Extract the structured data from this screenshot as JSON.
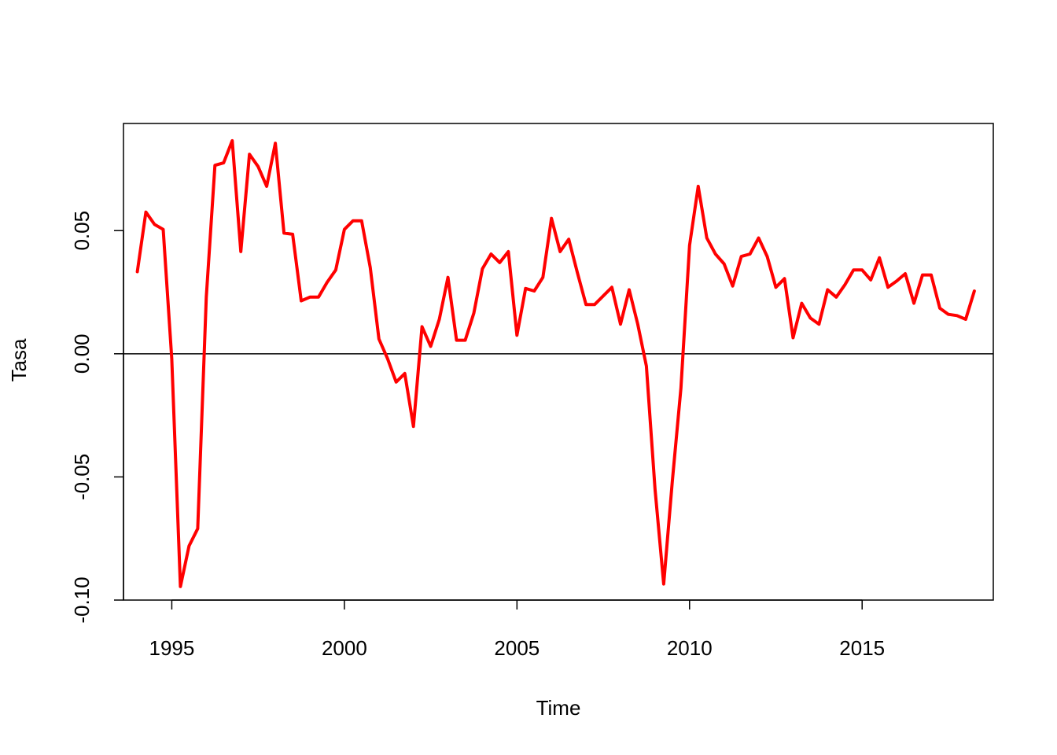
{
  "chart_data": {
    "type": "line",
    "title": "",
    "xlabel": "Time",
    "ylabel": "Tasa",
    "xlim": [
      1993.6,
      2018.8
    ],
    "ylim": [
      -0.1,
      0.0935
    ],
    "x_ticks": [
      1995,
      2000,
      2005,
      2010,
      2015
    ],
    "x_tick_labels": [
      "1995",
      "2000",
      "2005",
      "2010",
      "2015"
    ],
    "y_ticks": [
      -0.1,
      -0.05,
      0,
      0.05
    ],
    "y_tick_labels": [
      "-0.10",
      "-0.05",
      "0.00",
      "0.05"
    ],
    "reference_line_y": 0,
    "grid": false,
    "legend": "none",
    "colors": {
      "series": "#ff0000",
      "axes": "#000000",
      "background": "#ffffff"
    },
    "series": [
      {
        "x_start": 1994.0,
        "x_step": 0.25,
        "values": [
          0.0333,
          0.0575,
          0.0525,
          0.0505,
          -0.002,
          -0.0945,
          -0.078,
          -0.071,
          0.023,
          0.0765,
          0.0775,
          0.0865,
          0.0415,
          0.081,
          0.076,
          0.068,
          0.0855,
          0.049,
          0.0485,
          0.0215,
          0.023,
          0.023,
          0.029,
          0.034,
          0.0505,
          0.054,
          0.054,
          0.035,
          0.006,
          -0.002,
          -0.0115,
          -0.008,
          -0.0295,
          0.011,
          0.003,
          0.014,
          0.031,
          0.0055,
          0.0055,
          0.0165,
          0.0345,
          0.0405,
          0.037,
          0.0415,
          0.0075,
          0.0265,
          0.0255,
          0.031,
          0.055,
          0.0415,
          0.0465,
          0.033,
          0.02,
          0.02,
          0.0235,
          0.027,
          0.012,
          0.026,
          0.012,
          -0.005,
          -0.055,
          -0.0935,
          -0.052,
          -0.014,
          0.044,
          0.068,
          0.047,
          0.0405,
          0.0365,
          0.0275,
          0.0395,
          0.0405,
          0.047,
          0.0395,
          0.027,
          0.0305,
          0.0065,
          0.0205,
          0.0145,
          0.012,
          0.026,
          0.023,
          0.028,
          0.034,
          0.034,
          0.03,
          0.039,
          0.027,
          0.0295,
          0.0325,
          0.0205,
          0.032,
          0.032,
          0.0185,
          0.016,
          0.0155,
          0.014,
          0.0255
        ]
      }
    ]
  }
}
